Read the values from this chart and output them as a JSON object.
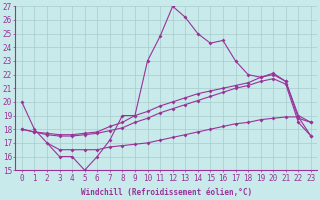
{
  "background_color": "#c8eaea",
  "grid_color": "#a8cccc",
  "line_color": "#993399",
  "xlim": [
    -0.5,
    23.5
  ],
  "ylim": [
    15,
    27
  ],
  "xlabel": "Windchill (Refroidissement éolien,°C)",
  "xlabel_fontsize": 5.5,
  "xticks": [
    0,
    1,
    2,
    3,
    4,
    5,
    6,
    7,
    8,
    9,
    10,
    11,
    12,
    13,
    14,
    15,
    16,
    17,
    18,
    19,
    20,
    21,
    22,
    23
  ],
  "yticks": [
    15,
    16,
    17,
    18,
    19,
    20,
    21,
    22,
    23,
    24,
    25,
    26,
    27
  ],
  "tick_fontsize": 5.5,
  "series1_x": [
    0,
    1,
    3,
    4,
    5,
    6,
    7,
    8,
    9,
    10,
    11,
    12,
    13,
    14,
    15,
    16,
    17,
    18,
    19,
    20,
    21,
    22,
    23
  ],
  "series1_y": [
    20,
    18,
    16,
    16,
    15,
    16,
    17.2,
    19,
    19,
    23,
    24.8,
    27,
    26.2,
    25,
    24.3,
    24.5,
    23,
    22,
    21.8,
    22,
    21.5,
    19,
    18.5
  ],
  "series2_x": [
    0,
    1,
    2,
    3,
    4,
    5,
    6,
    7,
    8,
    9,
    10,
    11,
    12,
    13,
    14,
    15,
    16,
    17,
    18,
    19,
    20,
    21,
    22,
    23
  ],
  "series2_y": [
    18,
    17.8,
    17.7,
    17.6,
    17.6,
    17.7,
    17.8,
    18.2,
    18.5,
    19.0,
    19.3,
    19.7,
    20.0,
    20.3,
    20.6,
    20.8,
    21.0,
    21.2,
    21.4,
    21.8,
    22.1,
    21.5,
    18.8,
    18.5
  ],
  "series3_x": [
    0,
    1,
    2,
    3,
    4,
    5,
    6,
    7,
    8,
    9,
    10,
    11,
    12,
    13,
    14,
    15,
    16,
    17,
    18,
    19,
    20,
    21,
    22,
    23
  ],
  "series3_y": [
    18,
    17.8,
    17.6,
    17.5,
    17.5,
    17.6,
    17.7,
    17.9,
    18.1,
    18.5,
    18.8,
    19.2,
    19.5,
    19.8,
    20.1,
    20.4,
    20.7,
    21.0,
    21.2,
    21.5,
    21.7,
    21.3,
    18.5,
    17.5
  ],
  "series4_x": [
    2,
    3,
    4,
    5,
    6,
    7,
    8,
    9,
    10,
    11,
    12,
    13,
    14,
    15,
    16,
    17,
    18,
    19,
    20,
    21,
    22,
    23
  ],
  "series4_y": [
    17.0,
    16.5,
    16.5,
    16.5,
    16.5,
    16.7,
    16.8,
    16.9,
    17.0,
    17.2,
    17.4,
    17.6,
    17.8,
    18.0,
    18.2,
    18.4,
    18.5,
    18.7,
    18.8,
    18.9,
    18.9,
    17.5
  ]
}
